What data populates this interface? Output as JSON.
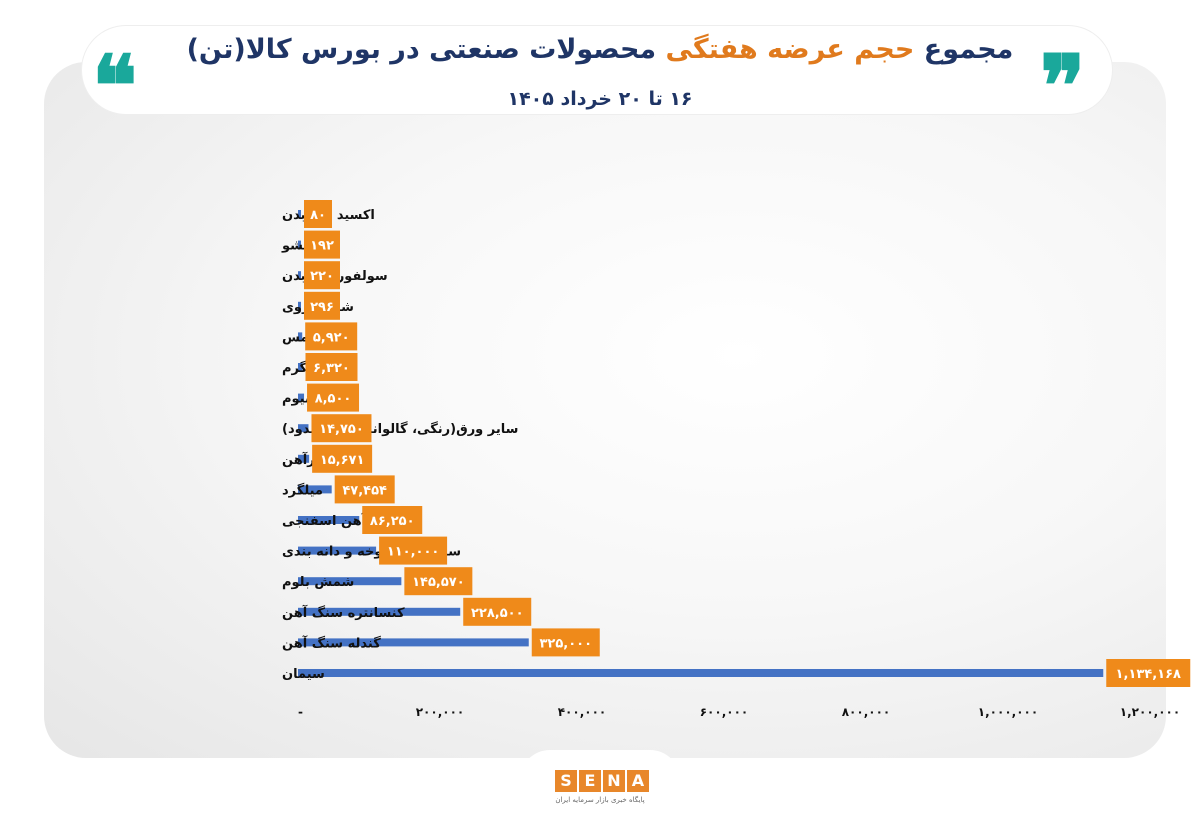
{
  "title": {
    "part1": "مجموع",
    "part2": "حجم عرضه هفتگی",
    "part3": "محصولات صنعتی در بورس کالا(تن)"
  },
  "subtitle": "۱۶ تا ۲۰ خرداد ۱۴۰۵",
  "logo": {
    "letters": [
      "S",
      "E",
      "N",
      "A"
    ],
    "tagline": "پایگاه خبری بازار سرمایه ایران"
  },
  "colors": {
    "bar": "#4472c4",
    "label_bg": "#ef8a1a",
    "label_text": "#ffffff",
    "title_dark": "#1f3566",
    "title_accent": "#e07a1d",
    "quote": "#1aa89b"
  },
  "chart_data": {
    "type": "bar",
    "orientation": "horizontal",
    "categories": [
      "اکسید مولیبدن",
      "تیشو",
      "سولفور مولیبدن",
      "شمش روی",
      "مس",
      "ورق گرم",
      "آلومینیوم",
      "سایر ورق(رنگی، گالوانیزه،قلع اندود)",
      "تیرآهن",
      "میلگرد",
      "آهن اسفنجی",
      "سنگ آهن کلوخه و دانه بندی",
      "شمش بلوم",
      "کنسانتره سنگ آهن",
      "گندله سنگ آهن",
      "سیمان"
    ],
    "values": [
      80,
      192,
      220,
      296,
      5920,
      6320,
      8500,
      14750,
      15671,
      47454,
      86250,
      110000,
      145570,
      228500,
      325000,
      1134168
    ],
    "value_labels": [
      "۸۰",
      "۱۹۲",
      "۲۲۰",
      "۲۹۶",
      "۵,۹۲۰",
      "۶,۳۲۰",
      "۸,۵۰۰",
      "۱۴,۷۵۰",
      "۱۵,۶۷۱",
      "۴۷,۴۵۴",
      "۸۶,۲۵۰",
      "۱۱۰,۰۰۰",
      "۱۴۵,۵۷۰",
      "۲۲۸,۵۰۰",
      "۳۲۵,۰۰۰",
      "۱,۱۳۴,۱۶۸"
    ],
    "x_ticks": [
      0,
      200000,
      400000,
      600000,
      800000,
      1000000,
      1200000
    ],
    "x_tick_labels": [
      "-",
      "۲۰۰,۰۰۰",
      "۴۰۰,۰۰۰",
      "۶۰۰,۰۰۰",
      "۸۰۰,۰۰۰",
      "۱,۰۰۰,۰۰۰",
      "۱,۲۰۰,۰۰۰"
    ],
    "xlim": [
      0,
      1200000
    ],
    "grid": false,
    "legend": "none"
  }
}
